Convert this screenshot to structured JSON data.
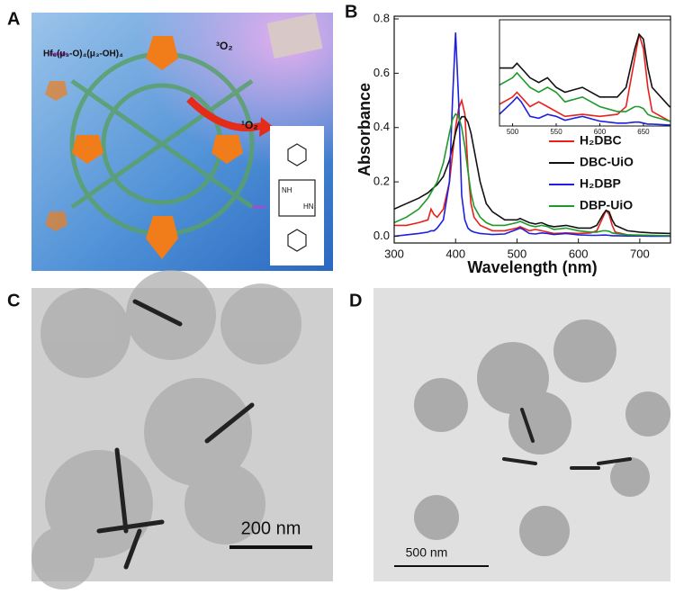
{
  "panels": {
    "a": {
      "label": "A",
      "cluster_label": "Hf₆(μ₃-O)₄(μ₃-OH)₄",
      "triplet": "³O₂",
      "singlet": "¹O₂",
      "molecule_labels": [
        "NH",
        "HN"
      ]
    },
    "b": {
      "label": "B"
    },
    "c": {
      "label": "C",
      "scale_bar": "200 nm"
    },
    "d": {
      "label": "D",
      "scale_bar": "500 nm"
    }
  },
  "chart_data": {
    "type": "line",
    "x_label": "Wavelength (nm)",
    "y_label": "Absorbance",
    "x": [
      300,
      320,
      340,
      355,
      360,
      365,
      370,
      380,
      390,
      395,
      400,
      405,
      410,
      415,
      420,
      425,
      430,
      440,
      450,
      460,
      480,
      500,
      505,
      510,
      520,
      530,
      540,
      550,
      560,
      580,
      600,
      620,
      630,
      640,
      645,
      650,
      655,
      660,
      680,
      700,
      720,
      750
    ],
    "series": [
      {
        "name": "H₂DBC",
        "color": "#e8201c",
        "values": [
          0.04,
          0.04,
          0.05,
          0.06,
          0.1,
          0.08,
          0.07,
          0.1,
          0.2,
          0.3,
          0.4,
          0.47,
          0.5,
          0.45,
          0.25,
          0.12,
          0.07,
          0.04,
          0.03,
          0.02,
          0.02,
          0.03,
          0.035,
          0.03,
          0.02,
          0.025,
          0.02,
          0.015,
          0.01,
          0.012,
          0.01,
          0.012,
          0.02,
          0.07,
          0.095,
          0.08,
          0.04,
          0.015,
          0.005,
          0.003,
          0.002,
          0.002
        ]
      },
      {
        "name": "DBC-UiO",
        "color": "#111111",
        "values": [
          0.1,
          0.12,
          0.14,
          0.16,
          0.17,
          0.18,
          0.19,
          0.22,
          0.28,
          0.33,
          0.38,
          0.42,
          0.44,
          0.44,
          0.42,
          0.38,
          0.32,
          0.2,
          0.12,
          0.09,
          0.06,
          0.06,
          0.065,
          0.06,
          0.05,
          0.045,
          0.05,
          0.04,
          0.035,
          0.04,
          0.03,
          0.03,
          0.04,
          0.08,
          0.095,
          0.09,
          0.06,
          0.04,
          0.02,
          0.015,
          0.012,
          0.01
        ]
      },
      {
        "name": "H₂DBP",
        "color": "#1f1fe0",
        "values": [
          0,
          0.005,
          0.01,
          0.015,
          0.02,
          0.02,
          0.03,
          0.06,
          0.2,
          0.5,
          0.75,
          0.5,
          0.15,
          0.06,
          0.03,
          0.02,
          0.015,
          0.01,
          0.008,
          0.006,
          0.008,
          0.025,
          0.03,
          0.025,
          0.01,
          0.008,
          0.012,
          0.01,
          0.006,
          0.01,
          0.005,
          0.003,
          0.003,
          0.004,
          0.004,
          0.003,
          0.002,
          0.002,
          0.001,
          0.001,
          0,
          0
        ]
      },
      {
        "name": "DBP-UiO",
        "color": "#1e9a2a",
        "values": [
          0.05,
          0.07,
          0.1,
          0.14,
          0.16,
          0.18,
          0.2,
          0.27,
          0.38,
          0.43,
          0.45,
          0.44,
          0.4,
          0.33,
          0.24,
          0.16,
          0.11,
          0.07,
          0.05,
          0.04,
          0.04,
          0.05,
          0.055,
          0.05,
          0.04,
          0.035,
          0.04,
          0.035,
          0.025,
          0.03,
          0.02,
          0.015,
          0.015,
          0.02,
          0.02,
          0.018,
          0.012,
          0.01,
          0.005,
          0.004,
          0.003,
          0.002
        ]
      }
    ],
    "xlim": [
      300,
      750
    ],
    "xticks": [
      300,
      400,
      500,
      600,
      700
    ],
    "ylim": [
      -0.025,
      0.81
    ],
    "yticks": [
      {
        "value": 0,
        "label": "0.0"
      },
      0.2,
      0.4,
      0.6,
      0.8
    ],
    "legend": "right",
    "inset": {
      "xlim": [
        485,
        681
      ],
      "ylim": [
        0,
        0.11
      ],
      "xticks": [
        500,
        550,
        600,
        650
      ]
    }
  }
}
